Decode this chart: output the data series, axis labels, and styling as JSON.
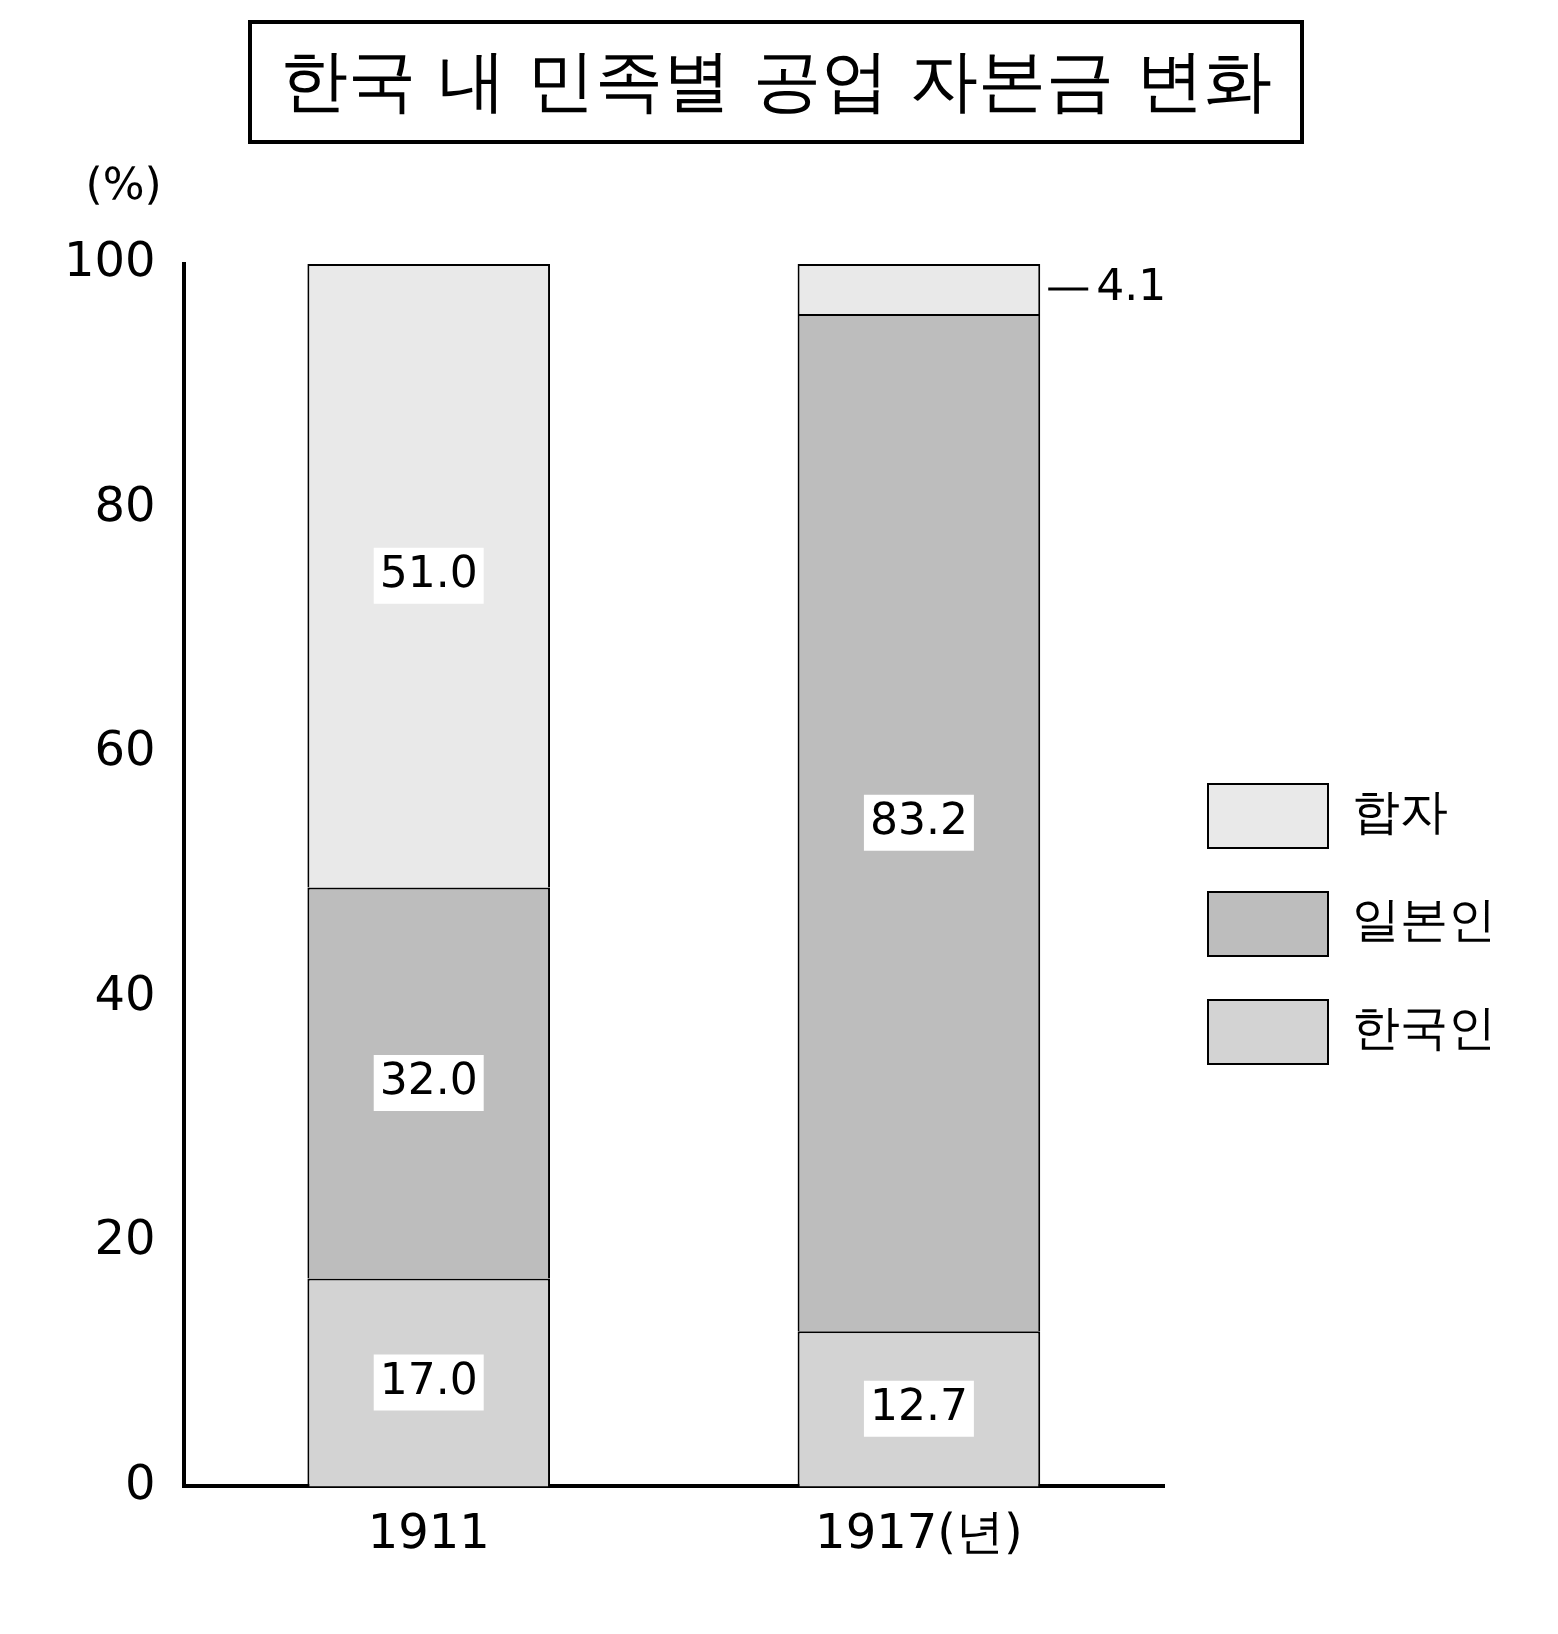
{
  "chart_data": {
    "type": "bar",
    "title": "한국 내 민족별 공업 자본금 변화",
    "ylabel": "(%)",
    "categories": [
      "1911",
      "1917(년)"
    ],
    "stacked": true,
    "ylim": [
      0,
      100
    ],
    "yticks": [
      0,
      20,
      40,
      60,
      80,
      100
    ],
    "grid": false,
    "legend": "right",
    "series": [
      {
        "name": "한국인",
        "color": "#d3d3d3",
        "values": [
          17.0,
          12.7
        ],
        "value_labels": [
          "17.0",
          "12.7"
        ]
      },
      {
        "name": "일본인",
        "color": "#bdbdbd",
        "values": [
          32.0,
          83.2
        ],
        "value_labels": [
          "32.0",
          "83.2"
        ]
      },
      {
        "name": "합자",
        "color": "#e9e9e9",
        "values": [
          51.0,
          4.1
        ],
        "value_labels": [
          "51.0",
          "4.1"
        ]
      }
    ]
  }
}
